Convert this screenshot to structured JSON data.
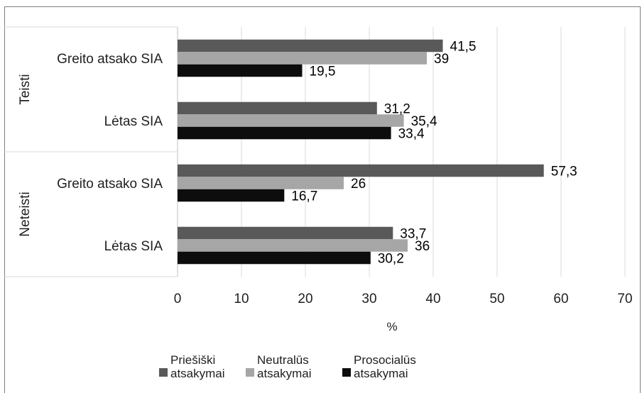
{
  "chart_data": {
    "type": "bar",
    "orientation": "horizontal",
    "x_axis_title": "%",
    "xlim": [
      0,
      70
    ],
    "x_ticks": [
      0,
      10,
      20,
      30,
      40,
      50,
      60,
      70
    ],
    "grid": "vertical",
    "legend_position": "bottom",
    "groups": [
      {
        "label": "Teisti",
        "categories": [
          {
            "label": "Greito atsako SIA",
            "values": [
              41.5,
              39,
              19.5
            ],
            "value_labels": [
              "41,5",
              "39",
              "19,5"
            ]
          },
          {
            "label": "Lėtas SIA",
            "values": [
              31.2,
              35.4,
              33.4
            ],
            "value_labels": [
              "31,2",
              "35,4",
              "33,4"
            ]
          }
        ]
      },
      {
        "label": "Neteisti",
        "categories": [
          {
            "label": "Greito atsako SIA",
            "values": [
              57.3,
              26,
              16.7
            ],
            "value_labels": [
              "57,3",
              "26",
              "16,7"
            ]
          },
          {
            "label": "Lėtas SIA",
            "values": [
              33.7,
              36,
              30.2
            ],
            "value_labels": [
              "33,7",
              "36",
              "30,2"
            ]
          }
        ]
      }
    ],
    "series": [
      {
        "name": "Priešiški atsakymai",
        "name_lines": [
          "Priešiški",
          "atsakymai"
        ],
        "color": "#595959"
      },
      {
        "name": "Neutralūs atsakymai",
        "name_lines": [
          "Neutralūs",
          "atsakymai"
        ],
        "color": "#a6a6a6"
      },
      {
        "name": "Prosocialūs atsakymai",
        "name_lines": [
          "Prosocialūs",
          "atsakymai"
        ],
        "color": "#0d0d0d"
      }
    ]
  }
}
